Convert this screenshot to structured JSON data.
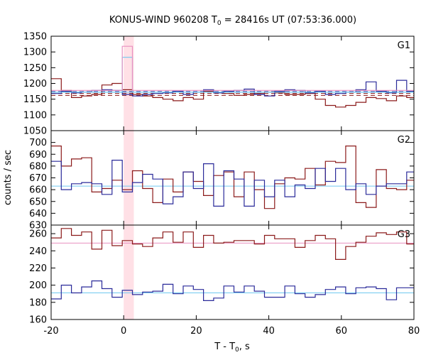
{
  "chart_data": {
    "type": "line",
    "title": "KONUS-WIND 960208 T",
    "title_sub": "0",
    "title_rest": " = 28416s UT (07:53:36.000)",
    "xlabel": "T - T",
    "xlabel_sub": "0",
    "xlabel_rest": ", s",
    "ylabel": "counts / sec",
    "xlim": [
      -20,
      80
    ],
    "xticks": [
      -20,
      0,
      20,
      40,
      60,
      80
    ],
    "xtick_labels": [
      "-20",
      "0",
      "20",
      "40",
      "60",
      "80"
    ],
    "highlight_band": [
      0,
      2.8
    ],
    "colors": {
      "red": "#8b1a1a",
      "blue": "#2a2a9a",
      "lightblue": "#70c8f0",
      "pink": "#e890c0",
      "band": "#ffe0e6"
    },
    "bin_edges": [
      -20,
      -17.2,
      -14.4,
      -11.6,
      -8.8,
      -6,
      -3.2,
      -0.4,
      2.4,
      5.2,
      8,
      10.8,
      13.6,
      16.4,
      19.2,
      22,
      24.8,
      27.6,
      30.4,
      33.2,
      36,
      38.8,
      41.6,
      44.4,
      47.2,
      50,
      52.8,
      55.6,
      58.4,
      61.2,
      64,
      66.8,
      69.6,
      72.4,
      75.2,
      78,
      80
    ],
    "panels": [
      {
        "label": "G1",
        "ylim": [
          1050,
          1350
        ],
        "yticks": [
          1050,
          1100,
          1150,
          1200,
          1250,
          1300,
          1350
        ],
        "ytick_labels": [
          "1050",
          "1100",
          "1150",
          "1200",
          "1250",
          "1300",
          "1350"
        ],
        "series": [
          {
            "name": "red",
            "values": [
              1215,
              1178,
              1155,
              1160,
              1165,
              1195,
              1200,
              1180,
              1165,
              1160,
              1155,
              1150,
              1145,
              1155,
              1150,
              1175,
              1170,
              1168,
              1162,
              1165,
              1168,
              1172,
              1170,
              1165,
              1165,
              1168,
              1150,
              1130,
              1125,
              1130,
              1140,
              1155,
              1152,
              1145,
              1160,
              1155
            ]
          },
          {
            "name": "blue",
            "values": [
              1168,
              1175,
              1170,
              1172,
              1178,
              1180,
              1178,
              1165,
              1160,
              1165,
              1168,
              1170,
              1175,
              1165,
              1172,
              1180,
              1170,
              1175,
              1178,
              1182,
              1165,
              1160,
              1175,
              1180,
              1178,
              1170,
              1175,
              1165,
              1168,
              1172,
              1180,
              1205,
              1175,
              1170,
              1210,
              1175
            ]
          },
          {
            "name": "lightblue_step",
            "values": [
              1172,
              1172,
              1172,
              1172,
              1172,
              1172,
              1172,
              1283,
              1172,
              1172,
              1172,
              1172,
              1172,
              1172,
              1172,
              1172,
              1172,
              1172,
              1172,
              1172,
              1172,
              1172,
              1172,
              1172,
              1172,
              1172,
              1172,
              1172,
              1172,
              1172,
              1172,
              1172,
              1172,
              1172,
              1172,
              1172
            ]
          },
          {
            "name": "pink_step",
            "values": [
              1178,
              1178,
              1178,
              1178,
              1178,
              1178,
              1178,
              1318,
              1178,
              1178,
              1178,
              1178,
              1178,
              1178,
              1178,
              1178,
              1178,
              1178,
              1178,
              1178,
              1178,
              1178,
              1178,
              1178,
              1178,
              1178,
              1178,
              1178,
              1178,
              1178,
              1178,
              1178,
              1178,
              1178,
              1178,
              1178
            ]
          }
        ],
        "dashed_lines": [
          {
            "color": "red",
            "value": 1168
          },
          {
            "color": "blue",
            "value": 1174
          },
          {
            "color": "red",
            "value": 1162
          }
        ],
        "bg_lines": [
          {
            "color": "lightblue",
            "value": 1172
          }
        ]
      },
      {
        "label": "G2",
        "ylim": [
          630,
          710
        ],
        "yticks": [
          630,
          640,
          650,
          660,
          670,
          680,
          690,
          700
        ],
        "ytick_labels": [
          "630",
          "640",
          "650",
          "660",
          "670",
          "680",
          "690",
          "700"
        ],
        "series": [
          {
            "name": "red",
            "values": [
              697,
              680,
              686,
              687,
              658,
              661,
              668,
              660,
              676,
              661,
              649,
              669,
              658,
              675,
              667,
              655,
              672,
              675,
              654,
              675,
              660,
              644,
              665,
              670,
              669,
              678,
              664,
              684,
              683,
              697,
              649,
              645,
              677,
              661,
              660,
              668
            ]
          },
          {
            "name": "blue",
            "values": [
              684,
              660,
              665,
              666,
              665,
              656,
              685,
              658,
              666,
              673,
              669,
              648,
              654,
              675,
              661,
              682,
              646,
              676,
              669,
              646,
              668,
              654,
              668,
              654,
              664,
              661,
              678,
              667,
              678,
              660,
              665,
              656,
              663,
              665,
              665,
              675
            ]
          }
        ],
        "dashed_lines": [],
        "bg_lines": [
          {
            "color": "lightblue",
            "value": 663
          }
        ]
      },
      {
        "label": "G3",
        "ylim": [
          160,
          270
        ],
        "yticks": [
          160,
          180,
          200,
          220,
          240,
          260
        ],
        "ytick_labels": [
          "160",
          "180",
          "200",
          "220",
          "240",
          "260"
        ],
        "series": [
          {
            "name": "red",
            "values": [
              255,
              266,
              258,
              262,
              242,
              264,
              246,
              252,
              248,
              245,
              255,
              262,
              250,
              262,
              244,
              258,
              249,
              250,
              252,
              252,
              248,
              258,
              254,
              254,
              244,
              252,
              258,
              254,
              230,
              245,
              250,
              257,
              261,
              259,
              262,
              248
            ]
          },
          {
            "name": "blue",
            "values": [
              184,
              200,
              191,
              198,
              205,
              196,
              186,
              194,
              189,
              192,
              193,
              201,
              190,
              199,
              195,
              182,
              185,
              199,
              192,
              199,
              193,
              186,
              186,
              199,
              190,
              186,
              189,
              195,
              198,
              190,
              197,
              198,
              196,
              183,
              197,
              197
            ]
          }
        ],
        "dashed_lines": [],
        "bg_lines": [
          {
            "color": "pink",
            "value": 249
          },
          {
            "color": "lightblue",
            "value": 191
          }
        ]
      }
    ]
  }
}
